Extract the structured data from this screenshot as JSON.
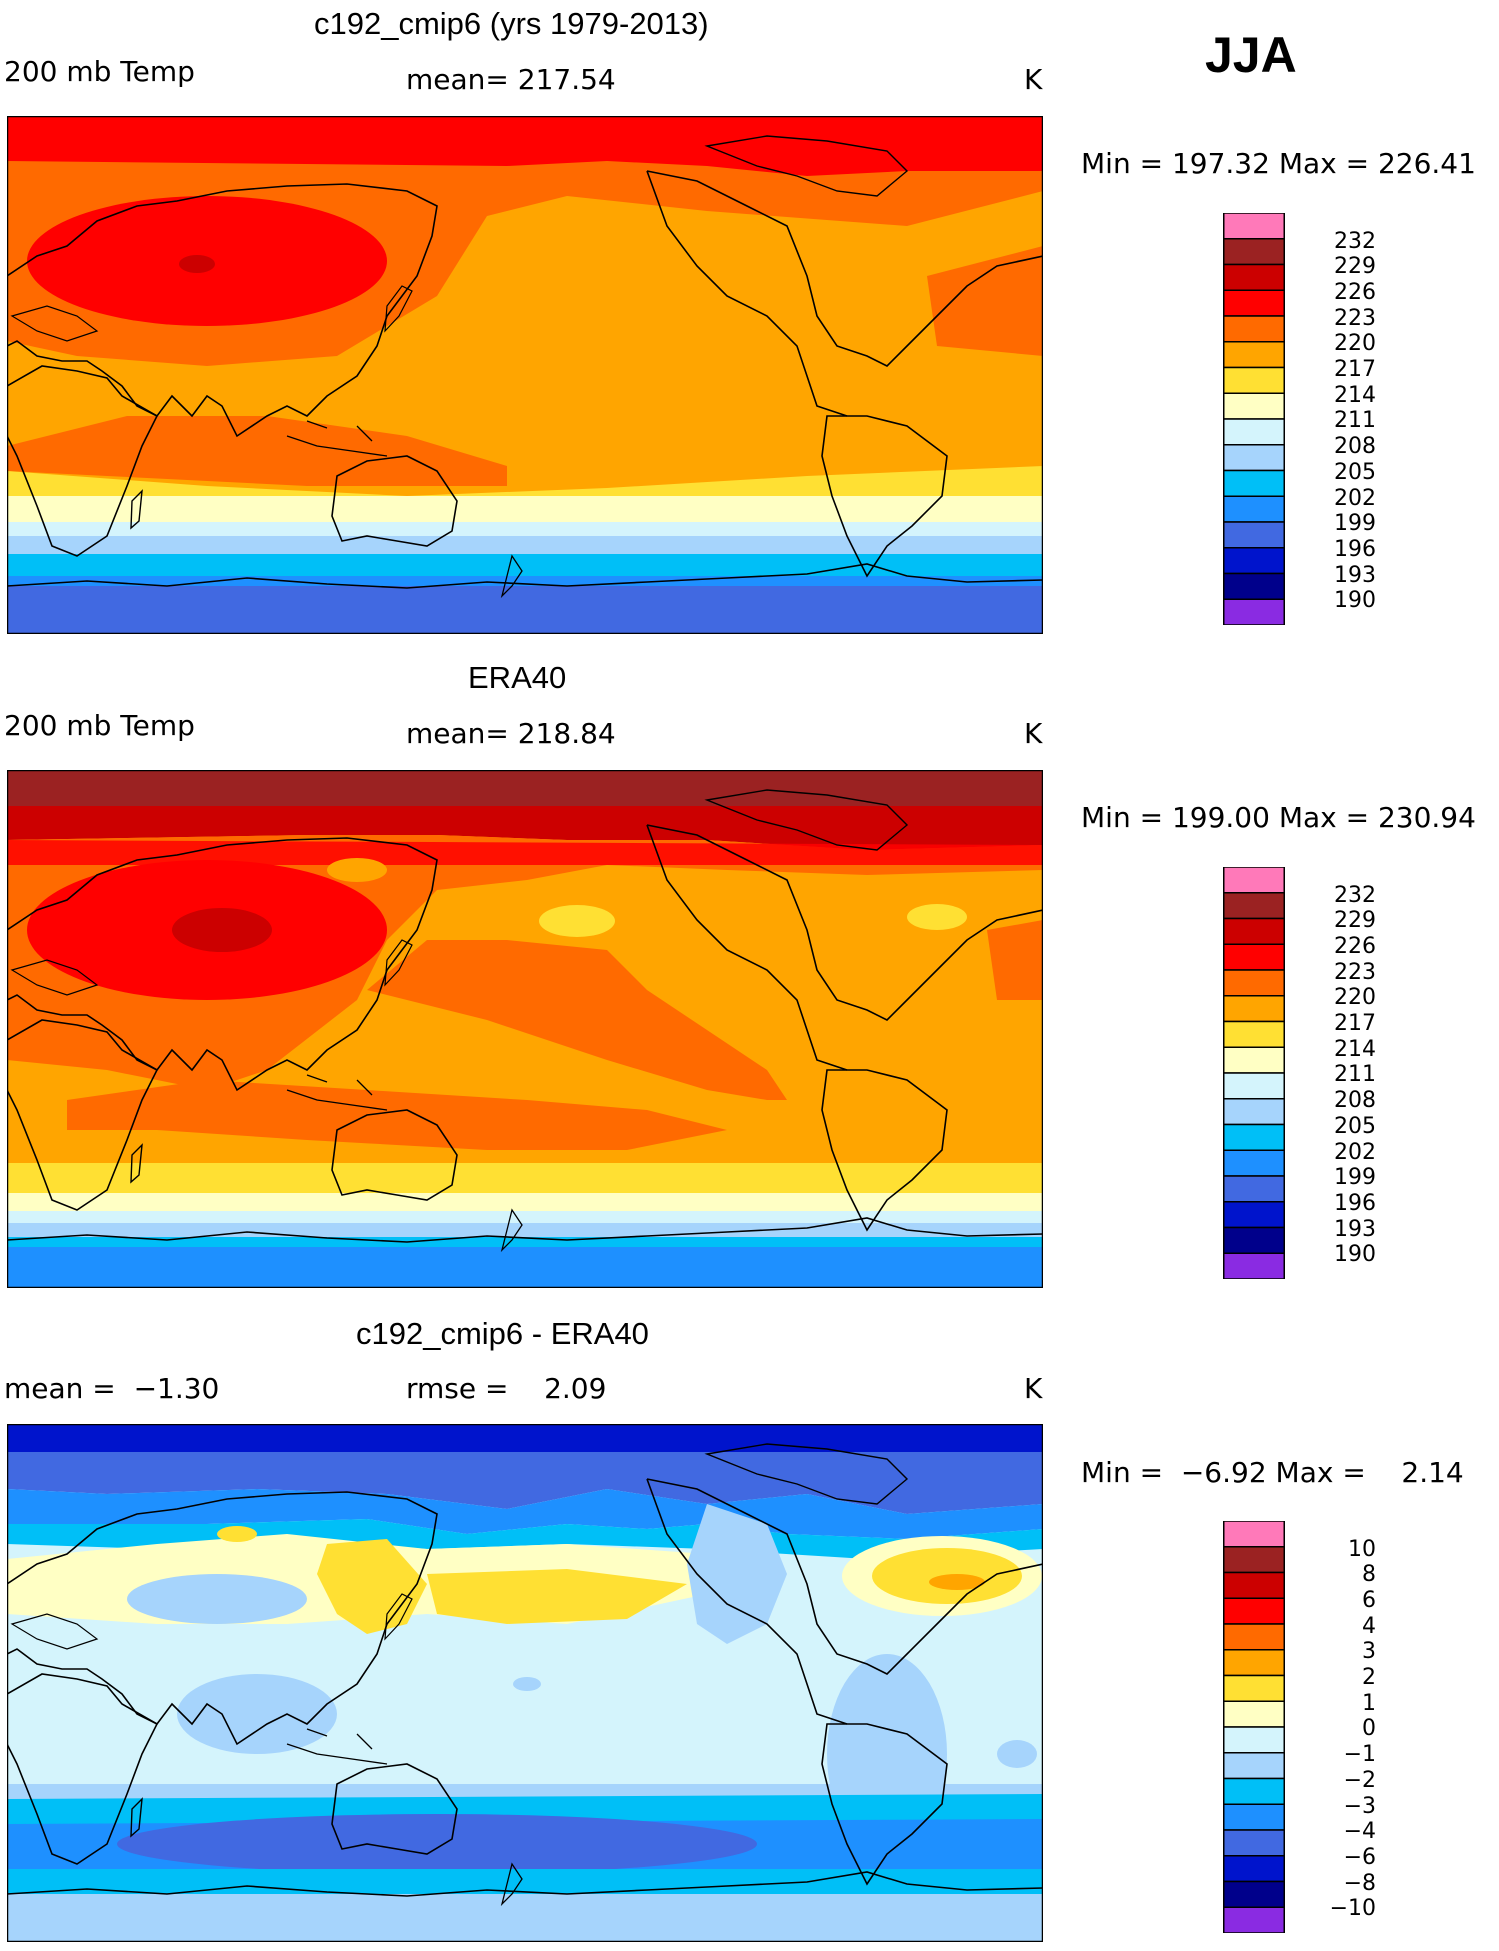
{
  "season": "JJA",
  "units": "K",
  "panels": [
    {
      "title": "c192_cmip6 (yrs 1979-2013)",
      "left_label": "200 mb Temp",
      "stat_label": "mean= 217.54",
      "units": "K",
      "minmax": "Min = 197.32 Max = 226.41",
      "colorbar_colors": [
        "#ff79b9",
        "#9b2222",
        "#cc0000",
        "#ff0000",
        "#ff6a00",
        "#ffa500",
        "#ffe033",
        "#ffffc4",
        "#d4f4fc",
        "#a6d4fc",
        "#00bff7",
        "#1e90ff",
        "#4169e1",
        "#0014cc",
        "#00008b",
        "#8a2be2"
      ],
      "colorbar_labels": [
        "232",
        "229",
        "226",
        "223",
        "220",
        "217",
        "214",
        "211",
        "208",
        "205",
        "202",
        "199",
        "196",
        "193",
        "190"
      ]
    },
    {
      "title": "ERA40",
      "left_label": "200 mb Temp",
      "stat_label": "mean= 218.84",
      "units": "K",
      "minmax": "Min = 199.00 Max = 230.94",
      "colorbar_colors": [
        "#ff79b9",
        "#9b2222",
        "#cc0000",
        "#ff0000",
        "#ff6a00",
        "#ffa500",
        "#ffe033",
        "#ffffc4",
        "#d4f4fc",
        "#a6d4fc",
        "#00bff7",
        "#1e90ff",
        "#4169e1",
        "#0014cc",
        "#00008b",
        "#8a2be2"
      ],
      "colorbar_labels": [
        "232",
        "229",
        "226",
        "223",
        "220",
        "217",
        "214",
        "211",
        "208",
        "205",
        "202",
        "199",
        "196",
        "193",
        "190"
      ]
    },
    {
      "title": "c192_cmip6 - ERA40",
      "left_label": "mean =  −1.30",
      "stat_label": "rmse =    2.09",
      "units": "K",
      "minmax": "Min =  −6.92 Max =    2.14",
      "colorbar_colors": [
        "#ff79b9",
        "#9b2222",
        "#cc0000",
        "#ff0000",
        "#ff6a00",
        "#ffa500",
        "#ffe033",
        "#ffffc4",
        "#d4f4fc",
        "#a6d4fc",
        "#00bff7",
        "#1e90ff",
        "#4169e1",
        "#0014cc",
        "#00008b",
        "#8a2be2"
      ],
      "colorbar_labels": [
        "10",
        "8",
        "6",
        "4",
        "3",
        "2",
        "1",
        "0",
        "−1",
        "−2",
        "−3",
        "−4",
        "−6",
        "−8",
        "−10"
      ]
    }
  ]
}
